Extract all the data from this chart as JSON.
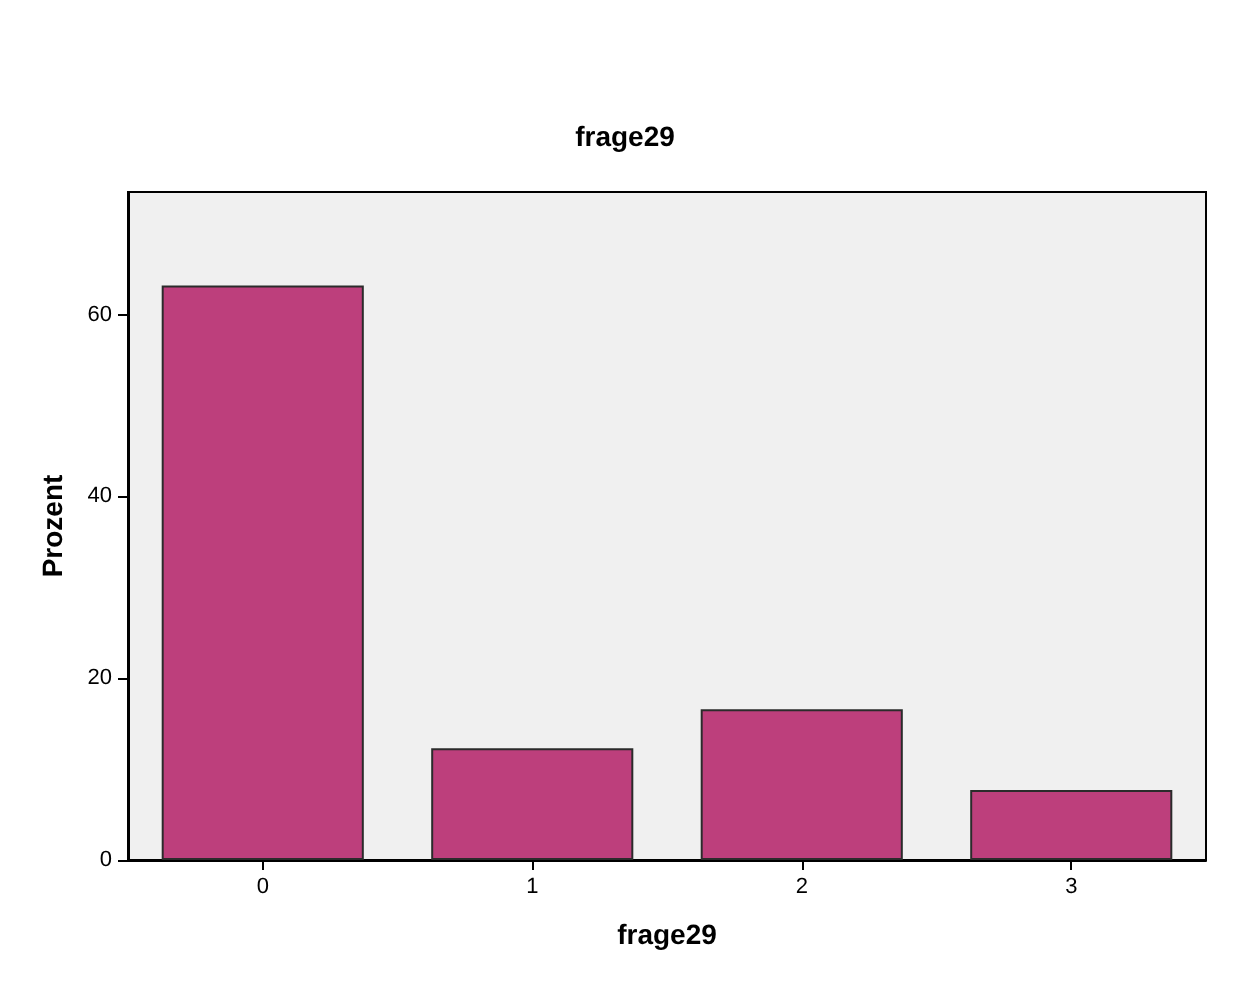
{
  "chart_data": {
    "type": "bar",
    "title": "frage29",
    "xlabel": "frage29",
    "ylabel": "Prozent",
    "categories": [
      "0",
      "1",
      "2",
      "3"
    ],
    "values": [
      63.2,
      12.3,
      16.6,
      7.7
    ],
    "color": "#bd3f7c",
    "ylim": [
      0,
      73.5
    ],
    "yticks": [
      0,
      20,
      40,
      60
    ],
    "grid": false
  }
}
